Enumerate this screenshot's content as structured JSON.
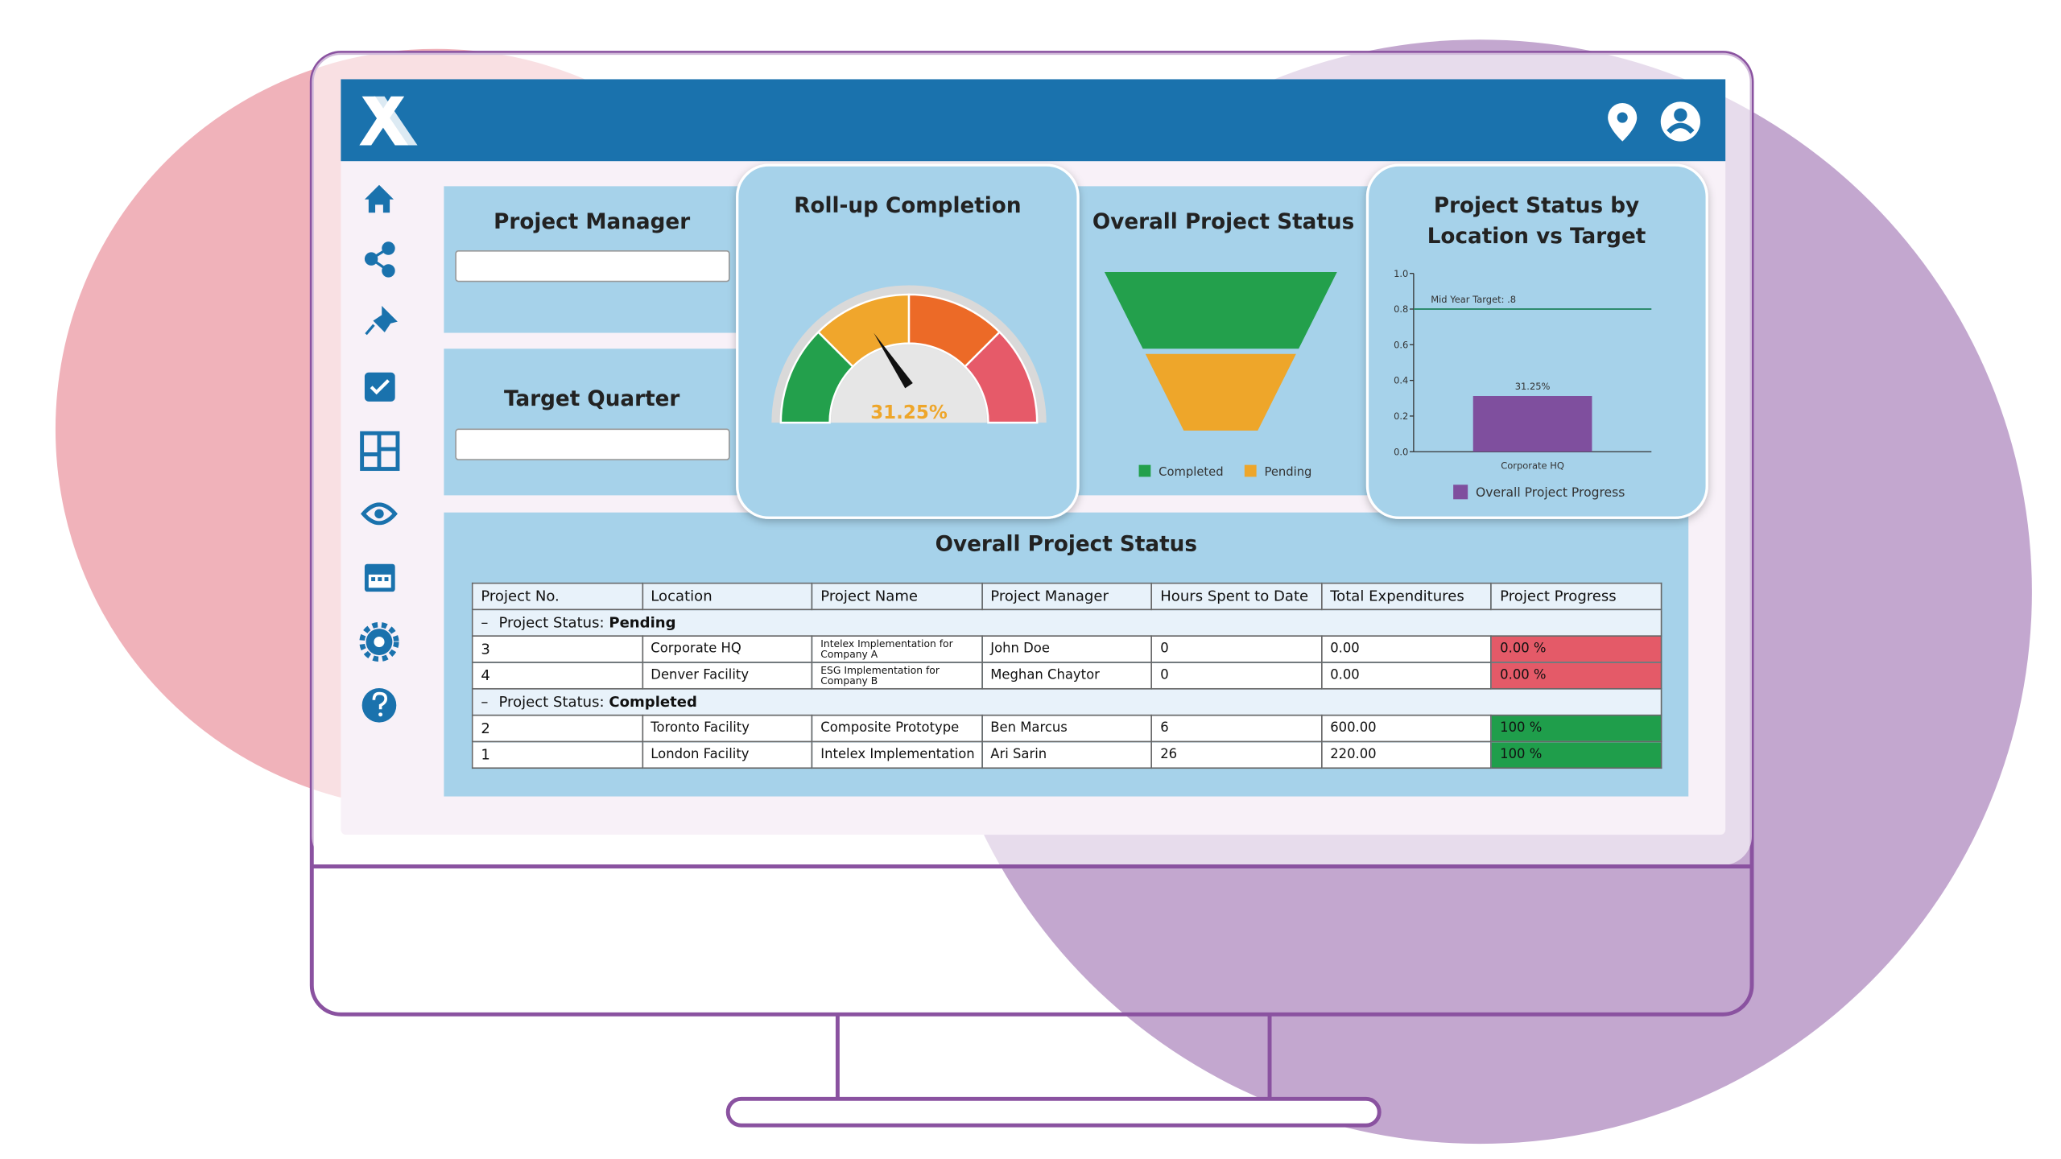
{
  "filters": [
    {
      "label": "Project Manager"
    },
    {
      "label": "Target Quarter"
    }
  ],
  "chart_data": [
    {
      "type": "gauge",
      "title": "Roll-up Completion",
      "values": [
        31.25
      ],
      "value_labels": [
        "31.25%"
      ],
      "ylim": [
        0,
        100
      ],
      "colors": [
        "#23a04c",
        "#f0a62c",
        "#ec6a27",
        "#e65a69"
      ],
      "label_color": "#eea62a"
    },
    {
      "type": "funnel",
      "title": "Overall Project Status",
      "categories": [
        "Completed",
        "Pending"
      ],
      "values": [
        2,
        2
      ],
      "colors": [
        "#23a04c",
        "#eea62a"
      ]
    },
    {
      "type": "bar",
      "title": [
        "Project Status by",
        "Location vs Target"
      ],
      "categories": [
        "Corporate HQ"
      ],
      "series": [
        {
          "name": "Overall Project Progress",
          "color": "#7f4f9e",
          "values": [
            0.3125
          ],
          "value_labels": [
            "31.25%"
          ]
        }
      ],
      "ylim": [
        0,
        1
      ],
      "yticks": [
        {
          "value": 0,
          "label": "0.0"
        },
        0.2,
        0.4,
        0.6,
        0.8,
        {
          "value": 1,
          "label": "1.0"
        }
      ],
      "target": {
        "value": 0.8,
        "label": "Mid Year Target: .8",
        "color": "#2e8b6e"
      }
    }
  ],
  "table": {
    "title": "Overall Project Status",
    "columns": [
      "Project No.",
      "Location",
      "Project Name",
      "Project Manager",
      "Hours Spent to Date",
      "Total Expenditures",
      "Project Progress"
    ],
    "group_label": "Project Status:",
    "groups": [
      {
        "status": "Pending",
        "color": "#e45a68",
        "rows": [
          [
            "3",
            "Corporate HQ",
            "Intelex Implementation for Company A",
            "John Doe",
            "0",
            "0.00",
            "0.00 %"
          ],
          [
            "4",
            "Denver Facility",
            "ESG Implementation for Company B",
            "Meghan Chaytor",
            "0",
            "0.00",
            "0.00 %"
          ]
        ]
      },
      {
        "status": "Completed",
        "color": "#1f9e4b",
        "rows": [
          [
            "2",
            "Toronto Facility",
            "Composite Prototype",
            "Ben Marcus",
            "6",
            "600.00",
            "100 %"
          ],
          [
            "1",
            "London Facility",
            "Intelex Implementation",
            "Ari Sarin",
            "26",
            "220.00",
            "100 %"
          ]
        ]
      }
    ]
  }
}
